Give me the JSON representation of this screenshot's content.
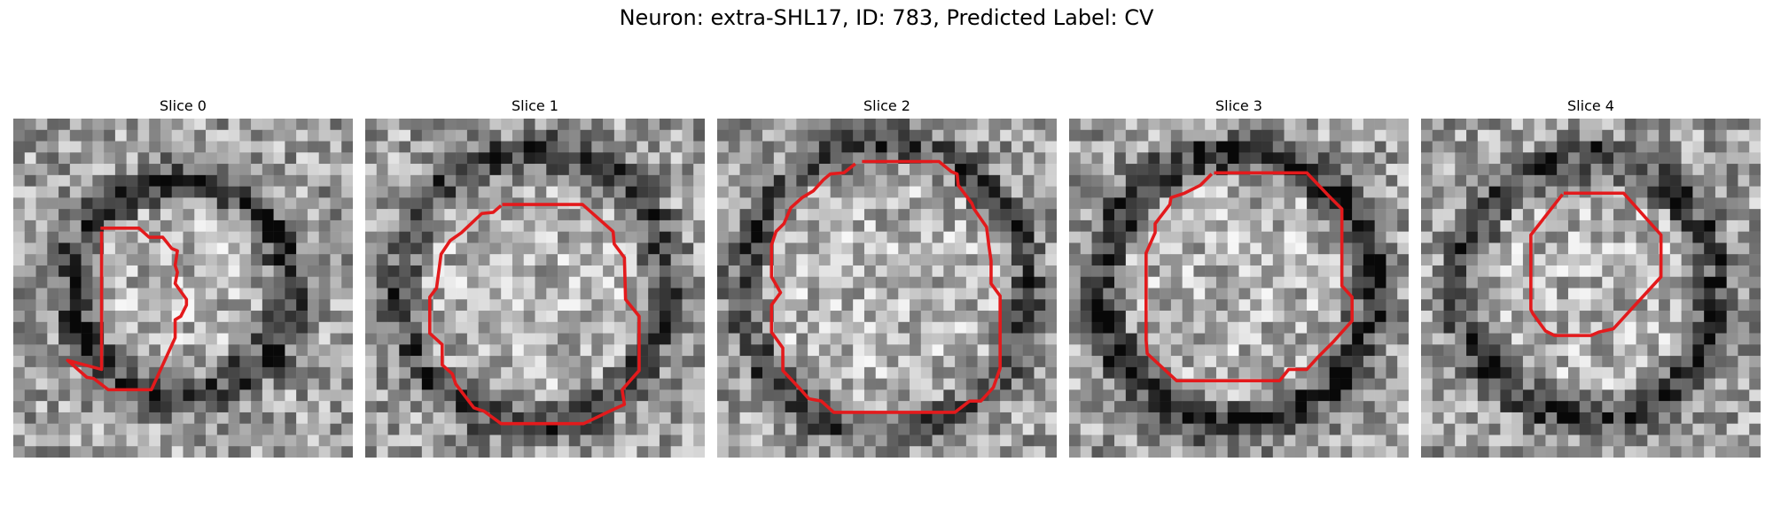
{
  "figure": {
    "title": "Neuron: extra-SHL17, ID: 783, Predicted Label: CV"
  },
  "panels": [
    {
      "title": "Slice 0",
      "seed": 11,
      "darkring": 0.55,
      "ring_radius": 0.32
    },
    {
      "title": "Slice 1",
      "seed": 23,
      "darkring": 0.45,
      "ring_radius": 0.4
    },
    {
      "title": "Slice 2",
      "seed": 37,
      "darkring": 0.4,
      "ring_radius": 0.42
    },
    {
      "title": "Slice 3",
      "seed": 51,
      "darkring": 0.6,
      "ring_radius": 0.4
    },
    {
      "title": "Slice 4",
      "seed": 67,
      "darkring": 0.5,
      "ring_radius": 0.38
    }
  ],
  "contour_color": "#e31a1c"
}
